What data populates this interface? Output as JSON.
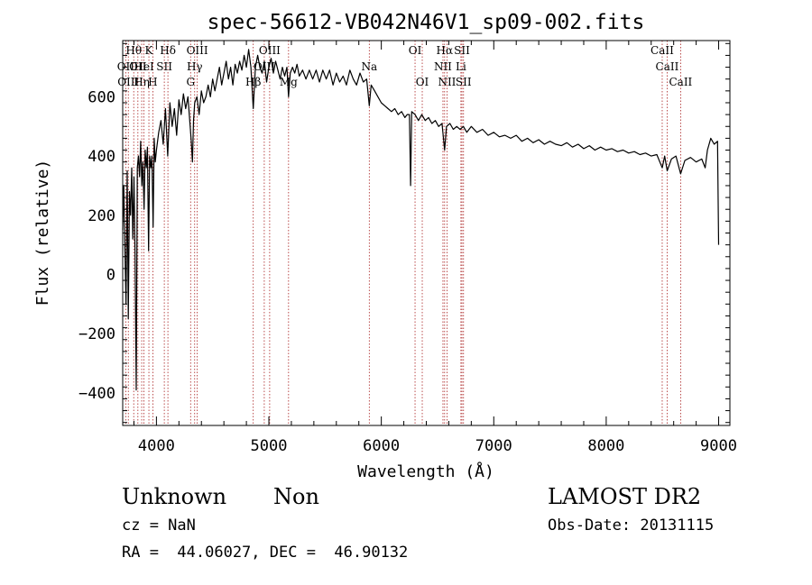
{
  "chart_data": {
    "type": "line",
    "title": "spec-56612-VB042N46V1_sp09-002.fits",
    "xlabel": "Wavelength (Å)",
    "ylabel": "Flux (relative)",
    "xlim": [
      3700,
      9100
    ],
    "ylim": [
      -510,
      790
    ],
    "x_ticks": [
      4000,
      5000,
      6000,
      7000,
      8000,
      9000
    ],
    "y_ticks": [
      -400,
      -200,
      0,
      200,
      400,
      600
    ],
    "series": [
      {
        "points": [
          [
            3700,
            150
          ],
          [
            3710,
            300
          ],
          [
            3720,
            80
          ],
          [
            3730,
            -100
          ],
          [
            3740,
            350
          ],
          [
            3750,
            -150
          ],
          [
            3760,
            280
          ],
          [
            3770,
            200
          ],
          [
            3780,
            360
          ],
          [
            3790,
            120
          ],
          [
            3800,
            330
          ],
          [
            3810,
            80
          ],
          [
            3820,
            -390
          ],
          [
            3830,
            360
          ],
          [
            3840,
            400
          ],
          [
            3850,
            330
          ],
          [
            3860,
            450
          ],
          [
            3870,
            300
          ],
          [
            3880,
            380
          ],
          [
            3890,
            220
          ],
          [
            3900,
            420
          ],
          [
            3910,
            360
          ],
          [
            3920,
            430
          ],
          [
            3930,
            80
          ],
          [
            3940,
            400
          ],
          [
            3950,
            360
          ],
          [
            3960,
            400
          ],
          [
            3970,
            160
          ],
          [
            3980,
            460
          ],
          [
            3990,
            380
          ],
          [
            4000,
            420
          ],
          [
            4020,
            480
          ],
          [
            4040,
            520
          ],
          [
            4060,
            440
          ],
          [
            4080,
            560
          ],
          [
            4100,
            400
          ],
          [
            4120,
            580
          ],
          [
            4140,
            500
          ],
          [
            4160,
            560
          ],
          [
            4180,
            470
          ],
          [
            4200,
            590
          ],
          [
            4220,
            540
          ],
          [
            4240,
            610
          ],
          [
            4260,
            560
          ],
          [
            4280,
            600
          ],
          [
            4300,
            500
          ],
          [
            4310,
            450
          ],
          [
            4320,
            380
          ],
          [
            4330,
            520
          ],
          [
            4340,
            580
          ],
          [
            4360,
            600
          ],
          [
            4380,
            540
          ],
          [
            4400,
            620
          ],
          [
            4420,
            580
          ],
          [
            4440,
            600
          ],
          [
            4460,
            640
          ],
          [
            4480,
            600
          ],
          [
            4500,
            660
          ],
          [
            4520,
            620
          ],
          [
            4540,
            660
          ],
          [
            4560,
            700
          ],
          [
            4580,
            640
          ],
          [
            4600,
            680
          ],
          [
            4620,
            720
          ],
          [
            4640,
            660
          ],
          [
            4660,
            700
          ],
          [
            4680,
            640
          ],
          [
            4700,
            710
          ],
          [
            4720,
            680
          ],
          [
            4740,
            720
          ],
          [
            4760,
            690
          ],
          [
            4780,
            740
          ],
          [
            4800,
            700
          ],
          [
            4820,
            760
          ],
          [
            4840,
            700
          ],
          [
            4861,
            560
          ],
          [
            4880,
            700
          ],
          [
            4900,
            740
          ],
          [
            4920,
            700
          ],
          [
            4940,
            680
          ],
          [
            4960,
            720
          ],
          [
            4980,
            650
          ],
          [
            5000,
            700
          ],
          [
            5020,
            730
          ],
          [
            5040,
            680
          ],
          [
            5060,
            720
          ],
          [
            5080,
            690
          ],
          [
            5100,
            660
          ],
          [
            5120,
            700
          ],
          [
            5140,
            670
          ],
          [
            5160,
            700
          ],
          [
            5175,
            600
          ],
          [
            5190,
            680
          ],
          [
            5210,
            700
          ],
          [
            5230,
            680
          ],
          [
            5250,
            710
          ],
          [
            5270,
            670
          ],
          [
            5300,
            690
          ],
          [
            5330,
            660
          ],
          [
            5360,
            690
          ],
          [
            5390,
            660
          ],
          [
            5420,
            690
          ],
          [
            5450,
            650
          ],
          [
            5480,
            690
          ],
          [
            5510,
            660
          ],
          [
            5540,
            690
          ],
          [
            5570,
            640
          ],
          [
            5600,
            680
          ],
          [
            5630,
            650
          ],
          [
            5660,
            670
          ],
          [
            5690,
            640
          ],
          [
            5720,
            690
          ],
          [
            5750,
            660
          ],
          [
            5780,
            640
          ],
          [
            5810,
            680
          ],
          [
            5840,
            650
          ],
          [
            5870,
            660
          ],
          [
            5893,
            570
          ],
          [
            5910,
            640
          ],
          [
            5940,
            620
          ],
          [
            5970,
            600
          ],
          [
            6000,
            580
          ],
          [
            6030,
            570
          ],
          [
            6060,
            560
          ],
          [
            6090,
            550
          ],
          [
            6120,
            560
          ],
          [
            6150,
            540
          ],
          [
            6180,
            550
          ],
          [
            6210,
            530
          ],
          [
            6230,
            540
          ],
          [
            6250,
            540
          ],
          [
            6260,
            300
          ],
          [
            6270,
            550
          ],
          [
            6300,
            540
          ],
          [
            6330,
            520
          ],
          [
            6360,
            540
          ],
          [
            6390,
            520
          ],
          [
            6420,
            530
          ],
          [
            6450,
            510
          ],
          [
            6480,
            520
          ],
          [
            6510,
            500
          ],
          [
            6540,
            510
          ],
          [
            6563,
            420
          ],
          [
            6580,
            500
          ],
          [
            6610,
            510
          ],
          [
            6640,
            490
          ],
          [
            6670,
            500
          ],
          [
            6700,
            490
          ],
          [
            6730,
            500
          ],
          [
            6760,
            480
          ],
          [
            6800,
            500
          ],
          [
            6850,
            480
          ],
          [
            6900,
            490
          ],
          [
            6950,
            470
          ],
          [
            7000,
            480
          ],
          [
            7050,
            465
          ],
          [
            7100,
            470
          ],
          [
            7150,
            460
          ],
          [
            7200,
            470
          ],
          [
            7250,
            450
          ],
          [
            7300,
            460
          ],
          [
            7350,
            445
          ],
          [
            7400,
            455
          ],
          [
            7450,
            440
          ],
          [
            7500,
            450
          ],
          [
            7550,
            440
          ],
          [
            7600,
            435
          ],
          [
            7650,
            445
          ],
          [
            7700,
            430
          ],
          [
            7750,
            440
          ],
          [
            7800,
            425
          ],
          [
            7850,
            435
          ],
          [
            7900,
            420
          ],
          [
            7950,
            430
          ],
          [
            8000,
            420
          ],
          [
            8050,
            425
          ],
          [
            8100,
            415
          ],
          [
            8150,
            420
          ],
          [
            8200,
            410
          ],
          [
            8250,
            415
          ],
          [
            8300,
            405
          ],
          [
            8350,
            410
          ],
          [
            8400,
            400
          ],
          [
            8450,
            405
          ],
          [
            8498,
            360
          ],
          [
            8520,
            400
          ],
          [
            8542,
            350
          ],
          [
            8580,
            390
          ],
          [
            8620,
            400
          ],
          [
            8662,
            340
          ],
          [
            8700,
            385
          ],
          [
            8750,
            395
          ],
          [
            8800,
            380
          ],
          [
            8850,
            390
          ],
          [
            8880,
            360
          ],
          [
            8900,
            420
          ],
          [
            8930,
            460
          ],
          [
            8960,
            440
          ],
          [
            8990,
            450
          ],
          [
            9000,
            100
          ]
        ]
      }
    ],
    "lines": [
      {
        "x": 3727,
        "tier": 1,
        "label": "OII"
      },
      {
        "x": 3750,
        "tier": 2,
        "label": "OIII"
      },
      {
        "x": 3798,
        "tier": 0,
        "label": "Hθ"
      },
      {
        "x": 3835,
        "tier": 1,
        "label": "OII"
      },
      {
        "x": 3869,
        "tier": 2,
        "label": "Hη"
      },
      {
        "x": 3889,
        "tier": 1,
        "label": "HeI"
      },
      {
        "x": 3933,
        "tier": 0,
        "label": "K"
      },
      {
        "x": 3968,
        "tier": 2,
        "label": "H"
      },
      {
        "x": 4070,
        "tier": 1,
        "label": "SII"
      },
      {
        "x": 4102,
        "tier": 0,
        "label": "Hδ"
      },
      {
        "x": 4304,
        "tier": 2,
        "label": "G"
      },
      {
        "x": 4340,
        "tier": 1,
        "label": "Hγ"
      },
      {
        "x": 4363,
        "tier": 0,
        "label": "OIII"
      },
      {
        "x": 4861,
        "tier": 2,
        "label": "Hβ"
      },
      {
        "x": 4959,
        "tier": 1,
        "label": "OIII"
      },
      {
        "x": 5007,
        "tier": 0,
        "label": "OIII"
      },
      {
        "x": 5175,
        "tier": 2,
        "label": "Mg"
      },
      {
        "x": 5893,
        "tier": 1,
        "label": "Na"
      },
      {
        "x": 6300,
        "tier": 0,
        "label": "OI"
      },
      {
        "x": 6364,
        "tier": 2,
        "label": "OI"
      },
      {
        "x": 6548,
        "tier": 1,
        "label": "NII"
      },
      {
        "x": 6563,
        "tier": 0,
        "label": "Hα"
      },
      {
        "x": 6584,
        "tier": 2,
        "label": "NII"
      },
      {
        "x": 6708,
        "tier": 1,
        "label": "Li"
      },
      {
        "x": 6717,
        "tier": 0,
        "label": "SII"
      },
      {
        "x": 6731,
        "tier": 2,
        "label": "SII"
      },
      {
        "x": 8498,
        "tier": 0,
        "label": "CaII"
      },
      {
        "x": 8542,
        "tier": 1,
        "label": "CaII"
      },
      {
        "x": 8662,
        "tier": 2,
        "label": "CaII"
      }
    ]
  },
  "info": {
    "class": "Unknown",
    "subclass": "Non",
    "survey": "LAMOST DR2",
    "cz": "cz = NaN",
    "obs_date": "Obs-Date: 20131115",
    "coords": "RA =  44.06027, DEC =  46.90132"
  }
}
